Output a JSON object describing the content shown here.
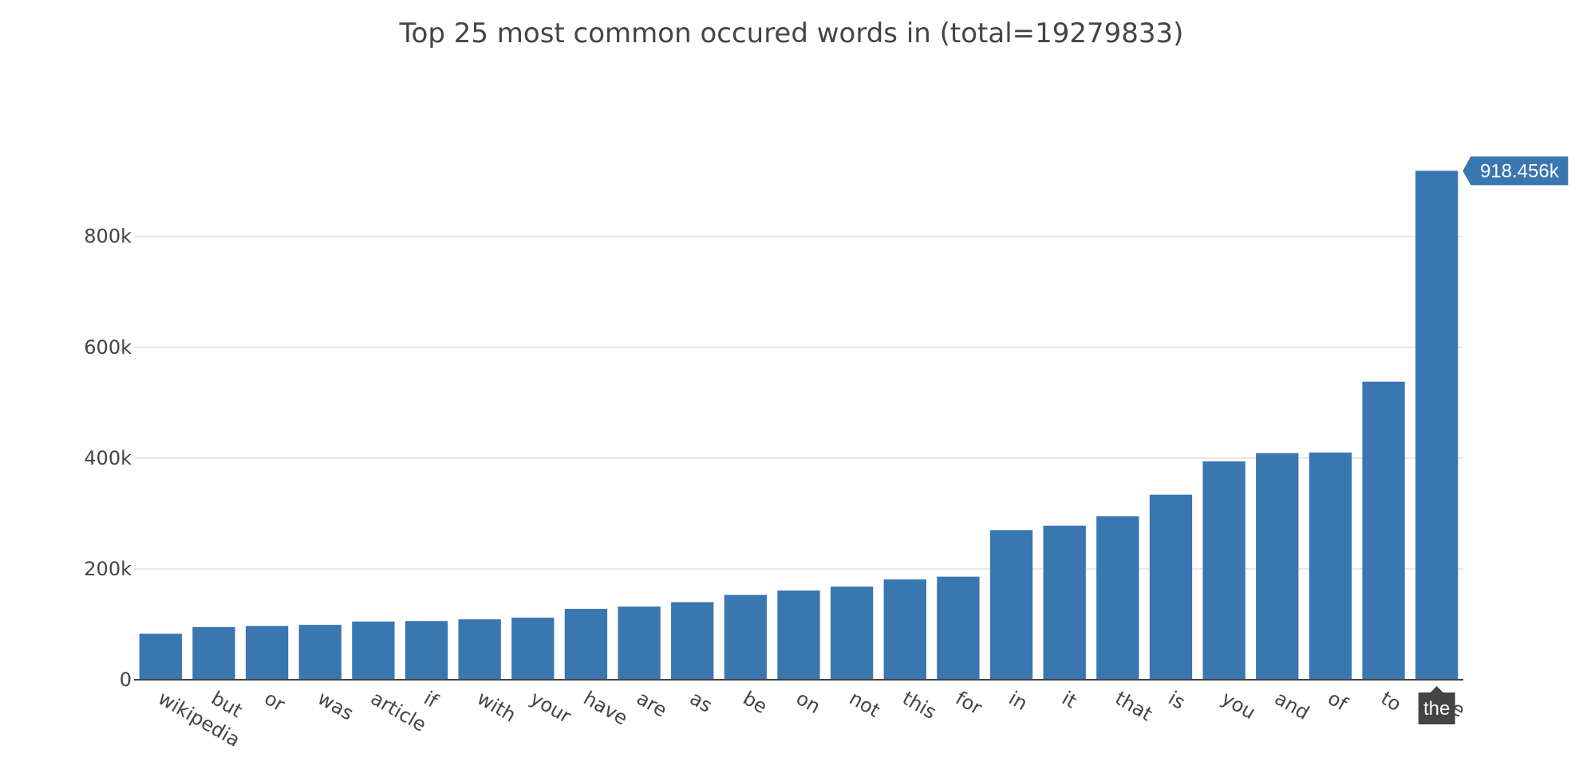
{
  "chart_data": {
    "type": "bar",
    "title": "Top 25 most common occured words in  (total=19279833)",
    "xlabel": "",
    "ylabel": "",
    "ylim": [
      0,
      975000
    ],
    "yticks": [
      0,
      200000,
      400000,
      600000,
      800000
    ],
    "ytick_labels": [
      "0",
      "200k",
      "400k",
      "600k",
      "800k"
    ],
    "grid": true,
    "bar_color": "#3a76af",
    "categories": [
      "wikipedia",
      "but",
      "or",
      "was",
      "article",
      "if",
      "with",
      "your",
      "have",
      "are",
      "as",
      "be",
      "on",
      "not",
      "this",
      "for",
      "in",
      "it",
      "that",
      "is",
      "you",
      "and",
      "of",
      "to",
      "the"
    ],
    "values": [
      83000,
      95000,
      97000,
      99000,
      105000,
      106000,
      109000,
      112000,
      128000,
      132000,
      140000,
      153000,
      161000,
      168000,
      181000,
      186000,
      270000,
      278000,
      295000,
      334000,
      394000,
      409000,
      410000,
      538000,
      918456
    ],
    "hover": {
      "category": "the",
      "value_label": "918.456k",
      "color": "#3a76af",
      "x_label_bg": "#444444"
    }
  }
}
